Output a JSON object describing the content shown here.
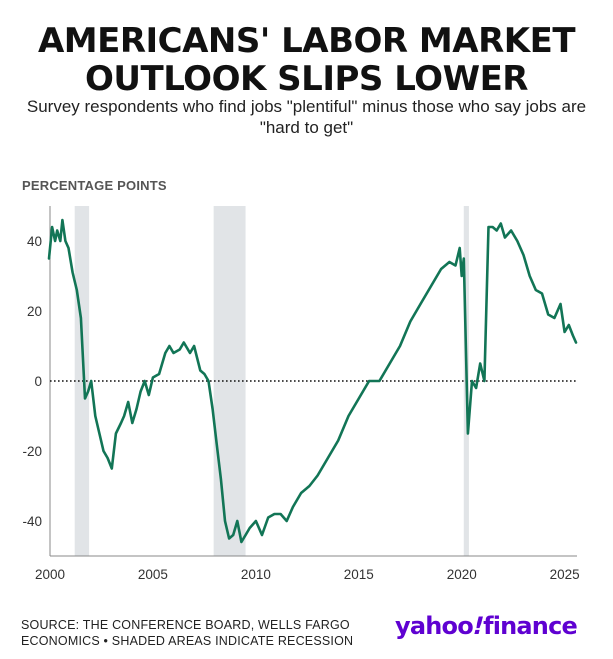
{
  "title_line1": "AMERICANS' LABOR MARKET",
  "title_line2": "OUTLOOK SLIPS LOWER",
  "subtitle": "Survey respondents who find jobs \"plentiful\" minus those who say jobs are \"hard to get\"",
  "source_line1": "SOURCE: THE CONFERENCE BOARD, WELLS FARGO",
  "source_line2": "ECONOMICS • SHADED AREAS INDICATE RECESSION",
  "logo_text_yahoo": "yahoo",
  "logo_text_mark": "!",
  "logo_text_finance": "finance",
  "colors": {
    "line": "#127556",
    "recession": "#e1e4e7",
    "logo": "#5f01d1"
  },
  "chart_data": {
    "type": "line",
    "title": "AMERICANS' LABOR MARKET OUTLOOK SLIPS LOWER",
    "subtitle": "Survey respondents who find jobs \"plentiful\" minus those who say jobs are \"hard to get\"",
    "ylabel": "PERCENTAGE POINTS",
    "xlim": [
      2000,
      2025.6
    ],
    "ylim": [
      -50,
      50
    ],
    "x_ticks": [
      2000,
      2005,
      2010,
      2015,
      2020,
      2025
    ],
    "y_ticks": [
      40,
      20,
      0,
      -20,
      -40
    ],
    "zero_line": true,
    "grid": false,
    "recessions": [
      [
        2001.2,
        2001.9
      ],
      [
        2007.95,
        2009.5
      ],
      [
        2020.1,
        2020.35
      ]
    ],
    "series": [
      {
        "name": "",
        "x": [
          1999.95,
          2000.1,
          2000.25,
          2000.35,
          2000.5,
          2000.6,
          2000.75,
          2000.9,
          2001.1,
          2001.3,
          2001.5,
          2001.7,
          2001.85,
          2002.0,
          2002.2,
          2002.4,
          2002.6,
          2002.8,
          2003.0,
          2003.2,
          2003.45,
          2003.6,
          2003.8,
          2004.0,
          2004.2,
          2004.4,
          2004.6,
          2004.8,
          2005.0,
          2005.3,
          2005.6,
          2005.8,
          2006.0,
          2006.3,
          2006.5,
          2006.8,
          2007.0,
          2007.3,
          2007.5,
          2007.7,
          2007.9,
          2008.1,
          2008.3,
          2008.5,
          2008.7,
          2008.9,
          2009.1,
          2009.3,
          2009.5,
          2009.7,
          2010.0,
          2010.3,
          2010.6,
          2010.9,
          2011.2,
          2011.5,
          2011.8,
          2012.2,
          2012.6,
          2013.0,
          2013.5,
          2014.0,
          2014.5,
          2015.0,
          2015.5,
          2016.0,
          2016.5,
          2017.0,
          2017.5,
          2018.0,
          2018.5,
          2019.0,
          2019.4,
          2019.7,
          2019.9,
          2020.0,
          2020.1,
          2020.3,
          2020.5,
          2020.7,
          2020.9,
          2021.1,
          2021.3,
          2021.5,
          2021.7,
          2021.9,
          2022.1,
          2022.4,
          2022.7,
          2023.0,
          2023.3,
          2023.6,
          2023.9,
          2024.2,
          2024.5,
          2024.8,
          2025.0,
          2025.2,
          2025.4,
          2025.55
        ],
        "y": [
          35,
          44,
          40,
          43,
          40,
          46,
          40,
          38,
          31,
          26,
          18,
          -5,
          -3,
          0,
          -10,
          -15,
          -20,
          -22,
          -25,
          -15,
          -12,
          -10,
          -6,
          -12,
          -8,
          -3,
          0,
          -4,
          1,
          2,
          8,
          10,
          8,
          9,
          11,
          8,
          10,
          3,
          2,
          0,
          -8,
          -18,
          -28,
          -40,
          -45,
          -44,
          -40,
          -46,
          -44,
          -42,
          -40,
          -44,
          -39,
          -38,
          -38,
          -40,
          -36,
          -32,
          -30,
          -27,
          -22,
          -17,
          -10,
          -5,
          0,
          0,
          5,
          10,
          17,
          22,
          27,
          32,
          34,
          33,
          38,
          30,
          35,
          -15,
          0,
          -2,
          5,
          0,
          44,
          44,
          43,
          45,
          41,
          43,
          40,
          36,
          30,
          26,
          25,
          19,
          18,
          22,
          14,
          16,
          13,
          11
        ]
      }
    ]
  }
}
